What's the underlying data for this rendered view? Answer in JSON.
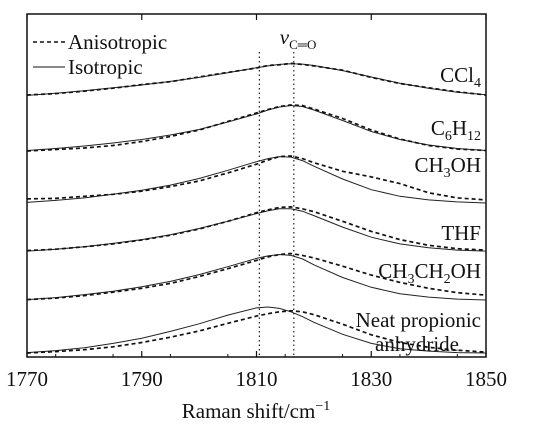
{
  "chart_data": {
    "type": "line",
    "xlabel": "Raman shift/cm",
    "xlabel_sup": "−1",
    "xlim": [
      1770,
      1850
    ],
    "x_ticks": [
      "1770",
      "1790",
      "1810",
      "1830",
      "1850"
    ],
    "x_tick_values": [
      1770,
      1790,
      1810,
      1830,
      1850
    ],
    "y_ticks": [],
    "grid": false,
    "legend_position": "top-left",
    "legend": [
      {
        "name": "Anisotropic",
        "style": "dashed"
      },
      {
        "name": "Isotropic",
        "style": "solid"
      }
    ],
    "reference_lines": [
      {
        "x": 1810.5,
        "style": "dotted"
      },
      {
        "x": 1816.5,
        "style": "dotted",
        "label": "ν",
        "label_sub": "C═O"
      }
    ],
    "x": [
      1770,
      1775,
      1780,
      1785,
      1790,
      1795,
      1800,
      1805,
      1810,
      1812,
      1814,
      1816,
      1818,
      1820,
      1825,
      1830,
      1835,
      1840,
      1845,
      1850
    ],
    "spectra": [
      {
        "label": "CCl",
        "label_sub": "4",
        "isotropic": [
          0.1,
          0.16,
          0.23,
          0.31,
          0.39,
          0.49,
          0.6,
          0.73,
          0.87,
          0.92,
          0.96,
          0.98,
          0.97,
          0.93,
          0.79,
          0.61,
          0.44,
          0.3,
          0.19,
          0.12
        ],
        "anisotropic": [
          0.11,
          0.15,
          0.22,
          0.3,
          0.4,
          0.48,
          0.61,
          0.74,
          0.86,
          0.93,
          0.95,
          0.99,
          0.96,
          0.92,
          0.8,
          0.6,
          0.43,
          0.31,
          0.2,
          0.11
        ]
      },
      {
        "label": "C",
        "label_sub": "6",
        "label_mid": "H",
        "label_sub2": "12",
        "isotropic": [
          0.05,
          0.09,
          0.14,
          0.2,
          0.27,
          0.36,
          0.47,
          0.62,
          0.78,
          0.86,
          0.92,
          0.95,
          0.93,
          0.86,
          0.65,
          0.43,
          0.27,
          0.16,
          0.09,
          0.05
        ],
        "anisotropic": [
          0.04,
          0.07,
          0.1,
          0.15,
          0.23,
          0.33,
          0.46,
          0.63,
          0.8,
          0.87,
          0.93,
          0.96,
          0.95,
          0.88,
          0.69,
          0.46,
          0.28,
          0.15,
          0.08,
          0.05
        ]
      },
      {
        "label": "CH",
        "label_sub": "3",
        "label_mid": "OH",
        "isotropic": [
          0.05,
          0.09,
          0.14,
          0.21,
          0.29,
          0.39,
          0.52,
          0.68,
          0.85,
          0.91,
          0.95,
          0.94,
          0.87,
          0.76,
          0.51,
          0.3,
          0.17,
          0.1,
          0.06,
          0.04
        ],
        "anisotropic": [
          0.12,
          0.13,
          0.17,
          0.21,
          0.27,
          0.36,
          0.47,
          0.63,
          0.8,
          0.88,
          0.95,
          0.96,
          0.91,
          0.83,
          0.66,
          0.55,
          0.42,
          0.24,
          0.14,
          0.1
        ]
      },
      {
        "label": "THF",
        "isotropic": [
          0.04,
          0.08,
          0.13,
          0.2,
          0.28,
          0.38,
          0.51,
          0.66,
          0.82,
          0.88,
          0.92,
          0.92,
          0.87,
          0.78,
          0.54,
          0.33,
          0.19,
          0.11,
          0.06,
          0.04
        ],
        "anisotropic": [
          0.05,
          0.08,
          0.13,
          0.19,
          0.27,
          0.37,
          0.5,
          0.66,
          0.84,
          0.9,
          0.95,
          0.96,
          0.92,
          0.86,
          0.66,
          0.45,
          0.28,
          0.16,
          0.09,
          0.06
        ]
      },
      {
        "label": "CH",
        "label_sub": "3",
        "label_mid": "CH",
        "label_sub2": "2",
        "label_end": "OH",
        "isotropic": [
          0.05,
          0.09,
          0.15,
          0.22,
          0.31,
          0.42,
          0.56,
          0.72,
          0.89,
          0.94,
          0.97,
          0.95,
          0.88,
          0.76,
          0.5,
          0.3,
          0.17,
          0.1,
          0.06,
          0.04
        ],
        "anisotropic": [
          0.05,
          0.08,
          0.13,
          0.2,
          0.28,
          0.38,
          0.52,
          0.68,
          0.85,
          0.92,
          0.97,
          0.99,
          0.95,
          0.9,
          0.73,
          0.55,
          0.4,
          0.28,
          0.19,
          0.14
        ]
      },
      {
        "label": "Neat propionic",
        "label_line2": "anhydride",
        "isotropic": [
          0.03,
          0.07,
          0.13,
          0.22,
          0.33,
          0.47,
          0.63,
          0.81,
          0.96,
          0.98,
          0.95,
          0.88,
          0.78,
          0.66,
          0.41,
          0.22,
          0.11,
          0.06,
          0.03,
          0.02
        ],
        "anisotropic": [
          0.02,
          0.05,
          0.09,
          0.15,
          0.24,
          0.35,
          0.48,
          0.64,
          0.79,
          0.84,
          0.88,
          0.9,
          0.88,
          0.82,
          0.62,
          0.4,
          0.24,
          0.14,
          0.08,
          0.04
        ]
      }
    ]
  }
}
